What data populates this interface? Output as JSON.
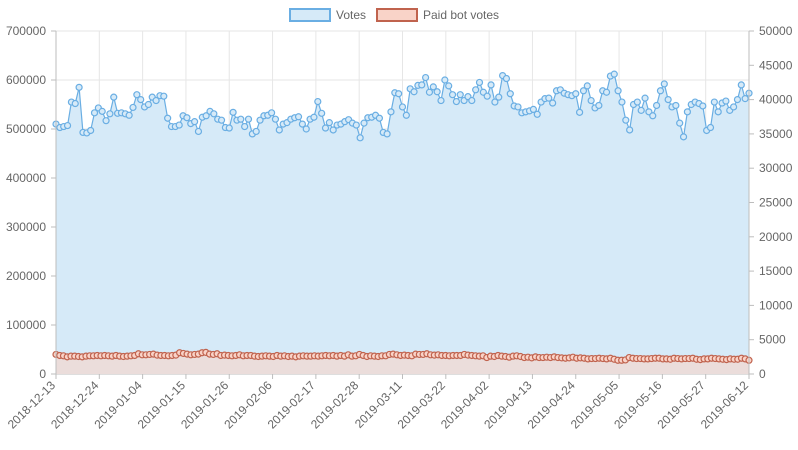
{
  "chart_data": {
    "type": "line",
    "title": "",
    "legend": {
      "position": "top",
      "items": [
        {
          "label": "Votes",
          "fill": "#d6eaf8",
          "stroke": "#6aaee3"
        },
        {
          "label": "Paid bot votes",
          "fill": "#f9d3c8",
          "stroke": "#c0634e"
        }
      ]
    },
    "x_ticks": [
      "2018-12-13",
      "2018-12-24",
      "2019-01-04",
      "2019-01-15",
      "2019-01-26",
      "2019-02-06",
      "2019-02-17",
      "2019-02-28",
      "2019-03-11",
      "2019-03-22",
      "2019-04-02",
      "2019-04-13",
      "2019-04-24",
      "2019-05-05",
      "2019-05-16",
      "2019-05-27",
      "2019-06-12"
    ],
    "y_left": {
      "min": 0,
      "max": 700000,
      "ticks": [
        "0",
        "100000",
        "200000",
        "300000",
        "400000",
        "500000",
        "600000",
        "700000"
      ]
    },
    "y_right": {
      "min": 0,
      "max": 50000,
      "ticks": [
        "0",
        "5000",
        "10000",
        "15000",
        "20000",
        "25000",
        "30000",
        "35000",
        "40000",
        "45000",
        "50000"
      ]
    },
    "grid": true,
    "series": [
      {
        "name": "Votes",
        "axis": "left",
        "color": "#6aaee3",
        "fill": "#d6eaf8",
        "values": [
          510000,
          503000,
          505000,
          507000,
          555000,
          552000,
          585000,
          493000,
          492000,
          497000,
          533000,
          543000,
          536000,
          517000,
          531000,
          565000,
          532000,
          533000,
          531000,
          528000,
          544000,
          570000,
          560000,
          545000,
          550000,
          565000,
          558000,
          568000,
          567000,
          522000,
          505000,
          505000,
          508000,
          527000,
          523000,
          511000,
          515000,
          495000,
          524000,
          527000,
          536000,
          531000,
          520000,
          518000,
          503000,
          502000,
          534000,
          518000,
          520000,
          505000,
          520000,
          490000,
          495000,
          518000,
          527000,
          528000,
          533000,
          520000,
          498000,
          510000,
          513000,
          520000,
          523000,
          525000,
          510000,
          500000,
          520000,
          524000,
          556000,
          532000,
          502000,
          513000,
          498000,
          508000,
          510000,
          515000,
          519000,
          512000,
          508000,
          482000,
          512000,
          523000,
          524000,
          528000,
          522000,
          493000,
          490000,
          535000,
          574000,
          572000,
          545000,
          528000,
          582000,
          576000,
          589000,
          590000,
          605000,
          575000,
          586000,
          576000,
          558000,
          600000,
          588000,
          570000,
          556000,
          570000,
          558000,
          566000,
          558000,
          580000,
          595000,
          575000,
          567000,
          590000,
          555000,
          565000,
          609000,
          603000,
          572000,
          547000,
          545000,
          533000,
          535000,
          537000,
          540000,
          530000,
          555000,
          562000,
          563000,
          553000,
          578000,
          580000,
          573000,
          570000,
          568000,
          572000,
          534000,
          578000,
          588000,
          558000,
          543000,
          548000,
          578000,
          575000,
          608000,
          612000,
          578000,
          555000,
          518000,
          498000,
          550000,
          555000,
          538000,
          563000,
          535000,
          527000,
          548000,
          578000,
          592000,
          560000,
          545000,
          548000,
          512000,
          484000,
          535000,
          550000,
          555000,
          552000,
          547000,
          497000,
          503000,
          555000,
          535000,
          553000,
          557000,
          538000,
          545000,
          560000,
          590000,
          562000,
          573000
        ]
      },
      {
        "name": "Paid bot votes",
        "axis": "right",
        "color": "#c0634e",
        "fill": "#f9d3c8",
        "values": [
          2850,
          2700,
          2650,
          2500,
          2600,
          2600,
          2550,
          2500,
          2600,
          2650,
          2650,
          2700,
          2650,
          2700,
          2650,
          2600,
          2700,
          2600,
          2550,
          2600,
          2650,
          2700,
          2950,
          2800,
          2800,
          2850,
          2900,
          2750,
          2700,
          2700,
          2650,
          2700,
          2750,
          3100,
          3000,
          2900,
          2800,
          2850,
          2900,
          3100,
          3150,
          2900,
          2850,
          2950,
          2700,
          2750,
          2700,
          2650,
          2700,
          2800,
          2650,
          2700,
          2700,
          2600,
          2550,
          2600,
          2650,
          2600,
          2550,
          2700,
          2600,
          2650,
          2550,
          2600,
          2500,
          2600,
          2650,
          2600,
          2600,
          2650,
          2600,
          2650,
          2700,
          2650,
          2700,
          2600,
          2700,
          2600,
          2800,
          2600,
          2650,
          2850,
          2700,
          2550,
          2650,
          2600,
          2550,
          2650,
          2650,
          2850,
          2900,
          2800,
          2700,
          2750,
          2700,
          2650,
          2900,
          2850,
          2850,
          2950,
          2800,
          2750,
          2800,
          2700,
          2700,
          2650,
          2700,
          2700,
          2700,
          2850,
          2750,
          2700,
          2650,
          2600,
          2650,
          2400,
          2600,
          2550,
          2700,
          2600,
          2550,
          2450,
          2600,
          2650,
          2550,
          2400,
          2450,
          2350,
          2500,
          2400,
          2400,
          2450,
          2400,
          2500,
          2400,
          2350,
          2300,
          2350,
          2450,
          2300,
          2350,
          2300,
          2200,
          2250,
          2250,
          2300,
          2250,
          2200,
          2300,
          2150,
          2000,
          2000,
          2050,
          2400,
          2300,
          2250,
          2250,
          2200,
          2200,
          2250,
          2300,
          2300,
          2200,
          2200,
          2150,
          2300,
          2250,
          2200,
          2250,
          2250,
          2300,
          2150,
          2100,
          2200,
          2200,
          2300,
          2250,
          2200,
          2150,
          2100,
          2200,
          2150,
          2150,
          2300,
          2200,
          2000
        ]
      }
    ]
  }
}
